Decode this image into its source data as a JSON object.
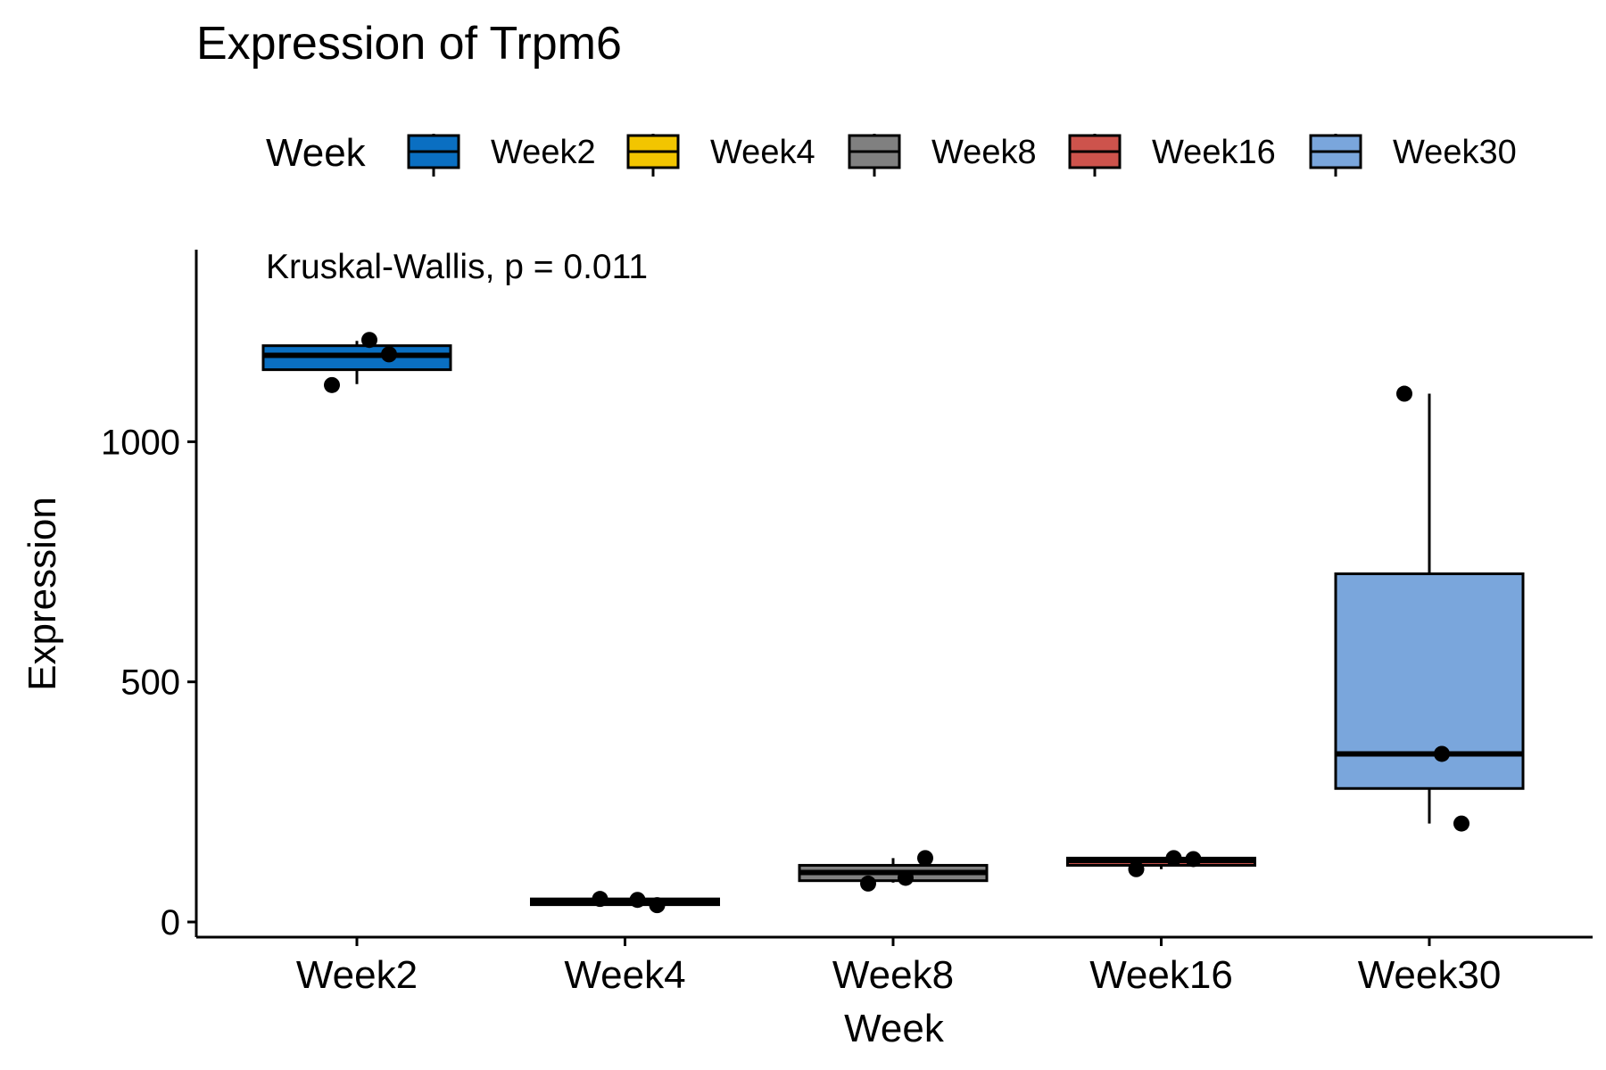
{
  "chart_data": {
    "type": "boxplot",
    "title": "Expression of Trpm6",
    "annotation": "Kruskal-Wallis, p = 0.011",
    "xlabel": "Week",
    "ylabel": "Expression",
    "ylim": [
      -30,
      1400
    ],
    "yticks": [
      0,
      500,
      1000
    ],
    "grid": false,
    "legend": {
      "title": "Week",
      "position": "top",
      "entries": [
        "Week2",
        "Week4",
        "Week8",
        "Week16",
        "Week30"
      ]
    },
    "categories": [
      "Week2",
      "Week4",
      "Week8",
      "Week16",
      "Week30"
    ],
    "series": [
      {
        "name": "Week2",
        "color": "#0a6fc2",
        "whisker_low": 1120,
        "q1": 1150,
        "median": 1180,
        "q3": 1200,
        "whisker_high": 1210,
        "points": [
          1118,
          1212,
          1182
        ]
      },
      {
        "name": "Week4",
        "color": "#f2c500",
        "whisker_low": 35,
        "q1": 36,
        "median": 40,
        "q3": 48,
        "whisker_high": 50,
        "points": [
          48,
          46,
          35
        ]
      },
      {
        "name": "Week8",
        "color": "#808080",
        "whisker_low": 82,
        "q1": 86,
        "median": 103,
        "q3": 118,
        "whisker_high": 133,
        "points": [
          80,
          92,
          133
        ]
      },
      {
        "name": "Week16",
        "color": "#cd534c",
        "whisker_low": 110,
        "q1": 118,
        "median": 128,
        "q3": 133,
        "whisker_high": 135,
        "points": [
          110,
          133,
          131
        ]
      },
      {
        "name": "Week30",
        "color": "#7aa6dc",
        "whisker_low": 205,
        "q1": 278,
        "median": 350,
        "q3": 725,
        "whisker_high": 1100,
        "points": [
          1100,
          350,
          205
        ]
      }
    ]
  }
}
